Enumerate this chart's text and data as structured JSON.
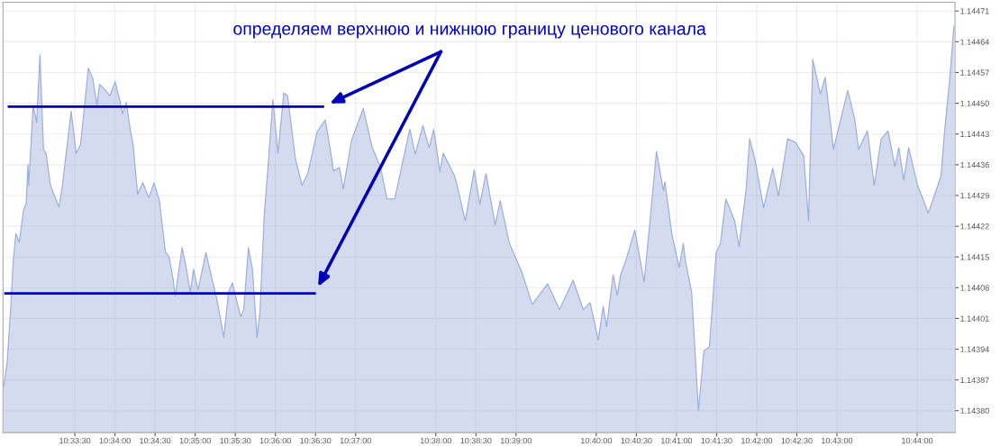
{
  "chart_data": {
    "type": "area",
    "annotations": [
      "определяем верхнюю и нижнюю границу ценового канала"
    ],
    "xlim": [
      10.5434,
      10.7412
    ],
    "ylim": [
      1.14375,
      1.14473
    ],
    "xticks": [
      {
        "value": 10.558333,
        "label": "10:33:30"
      },
      {
        "value": 10.566667,
        "label": "10:34:00"
      },
      {
        "value": 10.575,
        "label": "10:34:30"
      },
      {
        "value": 10.583333,
        "label": "10:35:00"
      },
      {
        "value": 10.591667,
        "label": "10:35:30"
      },
      {
        "value": 10.6,
        "label": "10:36:00"
      },
      {
        "value": 10.608333,
        "label": "10:36:30"
      },
      {
        "value": 10.616667,
        "label": "10:37:00"
      },
      {
        "value": 10.633333,
        "label": "10:38:00"
      },
      {
        "value": 10.641667,
        "label": "10:38:30"
      },
      {
        "value": 10.65,
        "label": "10:39:00"
      },
      {
        "value": 10.666667,
        "label": "10:40:00"
      },
      {
        "value": 10.675,
        "label": "10:40:30"
      },
      {
        "value": 10.683333,
        "label": "10:41:00"
      },
      {
        "value": 10.691667,
        "label": "10:41:30"
      },
      {
        "value": 10.7,
        "label": "10:42:00"
      },
      {
        "value": 10.708333,
        "label": "10:42:30"
      },
      {
        "value": 10.716667,
        "label": "10:43:00"
      },
      {
        "value": 10.733333,
        "label": "10:44:00"
      }
    ],
    "yticks": [
      {
        "value": 1.1438,
        "label": "1.14380"
      },
      {
        "value": 1.14387,
        "label": "1.14387"
      },
      {
        "value": 1.14394,
        "label": "1.14394"
      },
      {
        "value": 1.14401,
        "label": "1.14401"
      },
      {
        "value": 1.14408,
        "label": "1.14408"
      },
      {
        "value": 1.14415,
        "label": "1.14415"
      },
      {
        "value": 1.14422,
        "label": "1.14422"
      },
      {
        "value": 1.14429,
        "label": "1.14429"
      },
      {
        "value": 1.14436,
        "label": "1.14436"
      },
      {
        "value": 1.14443,
        "label": "1.14443"
      },
      {
        "value": 1.1445,
        "label": "1.14450"
      },
      {
        "value": 1.14457,
        "label": "1.14457"
      },
      {
        "value": 1.14464,
        "label": "1.14464"
      },
      {
        "value": 1.14471,
        "label": "1.14471"
      }
    ],
    "grid": true,
    "series": [
      {
        "color": "#9fb0dc",
        "x": [
          10.54356,
          10.54428,
          10.545,
          10.54553,
          10.54608,
          10.54678,
          10.54769,
          10.54822,
          10.54858,
          10.54875,
          10.54967,
          10.55039,
          10.55108,
          10.55181,
          10.55236,
          10.55325,
          10.55503,
          10.55575,
          10.55756,
          10.55861,
          10.55953,
          10.56114,
          10.56203,
          10.56292,
          10.56347,
          10.56472,
          10.56561,
          10.56669,
          10.56778,
          10.56825,
          10.56903,
          10.56981,
          10.57042,
          10.57136,
          10.57244,
          10.57369,
          10.57478,
          10.57589,
          10.57714,
          10.57792,
          10.57872,
          10.57919,
          10.58061,
          10.58139,
          10.58233,
          10.58297,
          10.58394,
          10.58556,
          10.58636,
          10.58783,
          10.58928,
          10.59025,
          10.59106,
          10.59219,
          10.59281,
          10.59342,
          10.59439,
          10.59522,
          10.59619,
          10.59681,
          10.59767,
          10.5985,
          10.59947,
          10.60053,
          10.60175,
          10.60253,
          10.60414,
          10.60553,
          10.60672,
          10.60867,
          10.61036,
          10.61122,
          10.61208,
          10.61328,
          10.61411,
          10.61581,
          10.61825,
          10.62006,
          10.62183,
          10.62319,
          10.62478,
          10.62792,
          10.62906,
          10.63064,
          10.63197,
          10.63289,
          10.63417,
          10.63486,
          10.63722,
          10.63775,
          10.63944,
          10.64131,
          10.64247,
          10.64375,
          10.64567,
          10.64672,
          10.64861,
          10.65125,
          10.65336,
          10.65656,
          10.65903,
          10.66186,
          10.66397,
          10.66539,
          10.66708,
          10.66811,
          10.66881,
          10.67017,
          10.67103,
          10.67172,
          10.67275,
          10.67467,
          10.67661,
          10.67772,
          10.67917,
          10.68061,
          10.68092,
          10.68236,
          10.68389,
          10.68475,
          10.68519,
          10.68647,
          10.68789,
          10.68903,
          10.69017,
          10.69158,
          10.69247,
          10.69358,
          10.69542,
          10.69633,
          10.69781,
          10.69853,
          10.69964,
          10.70142,
          10.70333,
          10.70453,
          10.70642,
          10.70808,
          10.70978,
          10.71078,
          10.71164,
          10.71322,
          10.71422,
          10.71536,
          10.71594,
          10.71892,
          10.72033,
          10.72117,
          10.723,
          10.72442,
          10.72586,
          10.72728,
          10.72872,
          10.72953,
          10.73056,
          10.73158,
          10.73342,
          10.73567,
          10.73831,
          10.73892,
          10.74017,
          10.74097
        ],
        "values": [
          1.143855,
          1.143912,
          1.144034,
          1.144142,
          1.144203,
          1.144183,
          1.144258,
          1.144272,
          1.14436,
          1.144313,
          1.144496,
          1.144456,
          1.14461,
          1.144395,
          1.144386,
          1.144313,
          1.144264,
          1.144313,
          1.144482,
          1.144386,
          1.144407,
          1.14458,
          1.144557,
          1.144496,
          1.144543,
          1.144529,
          1.144517,
          1.144549,
          1.144502,
          1.144476,
          1.144502,
          1.144441,
          1.144407,
          1.144293,
          1.144319,
          1.144285,
          1.144319,
          1.144278,
          1.144162,
          1.14415,
          1.144101,
          1.144061,
          1.144171,
          1.14413,
          1.144069,
          1.144122,
          1.144075,
          1.14416,
          1.144122,
          1.144054,
          1.143967,
          1.144069,
          1.144091,
          1.14404,
          1.144014,
          1.14403,
          1.144171,
          1.144122,
          1.143967,
          1.144028,
          1.144244,
          1.14436,
          1.144508,
          1.144386,
          1.144523,
          1.144517,
          1.144374,
          1.144313,
          1.14434,
          1.144435,
          1.144462,
          1.144407,
          1.144346,
          1.144354,
          1.144305,
          1.144415,
          1.144488,
          1.144401,
          1.144354,
          1.144282,
          1.144282,
          1.144441,
          1.144384,
          1.144449,
          1.144399,
          1.144441,
          1.144344,
          1.144386,
          1.144335,
          1.144313,
          1.144232,
          1.144348,
          1.14427,
          1.14434,
          1.144223,
          1.144278,
          1.144181,
          1.144114,
          1.144042,
          1.144089,
          1.14403,
          1.144097,
          1.14403,
          1.144046,
          1.143961,
          1.144038,
          1.143991,
          1.144109,
          1.144063,
          1.144109,
          1.14414,
          1.144211,
          1.144093,
          1.144219,
          1.14439,
          1.144301,
          1.144321,
          1.144203,
          1.144126,
          1.144181,
          1.14414,
          1.144071,
          1.1438,
          1.143936,
          1.143945,
          1.14416,
          1.144181,
          1.144282,
          1.144232,
          1.144173,
          1.144305,
          1.144419,
          1.144372,
          1.144262,
          1.144352,
          1.144289,
          1.144419,
          1.144411,
          1.14438,
          1.144232,
          1.1446,
          1.144521,
          1.144559,
          1.144453,
          1.144395,
          1.144529,
          1.144466,
          1.144395,
          1.144437,
          1.144313,
          1.144419,
          1.144437,
          1.144356,
          1.144399,
          1.144325,
          1.144399,
          1.144313,
          1.14425,
          1.144335,
          1.144421,
          1.144563,
          1.144675
        ]
      },
      {
        "type": "line",
        "color": "#0000bb",
        "x": [
          10.54464,
          10.60986
        ],
        "values": [
          1.144492,
          1.144492
        ]
      },
      {
        "type": "line",
        "color": "#0000bb",
        "x": [
          10.54392,
          10.60814
        ],
        "values": [
          1.144067,
          1.144067
        ]
      }
    ]
  }
}
